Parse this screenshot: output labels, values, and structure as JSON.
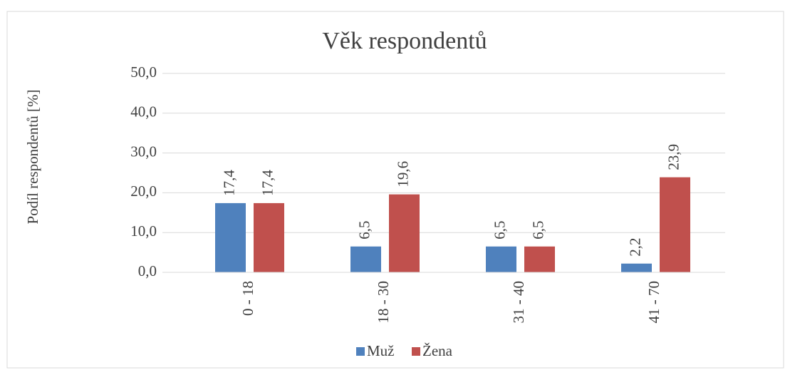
{
  "chart_data": {
    "type": "bar",
    "title": "Věk respondentů",
    "y_label": "Podíl respondentů [%]",
    "categories": [
      "0 - 18",
      "18 - 30",
      "31 - 40",
      "41 - 70"
    ],
    "series": [
      {
        "name": "Muž",
        "color": "#4f81bd",
        "values": [
          17.4,
          6.5,
          6.5,
          2.2
        ],
        "value_labels": [
          "17,4",
          "6,5",
          "6,5",
          "2,2"
        ]
      },
      {
        "name": "Žena",
        "color": "#c0504d",
        "values": [
          17.4,
          19.6,
          6.5,
          23.9
        ],
        "value_labels": [
          "17,4",
          "19,6",
          "6,5",
          "23,9"
        ]
      }
    ],
    "ylim": [
      0,
      50
    ],
    "yticks": [
      {
        "value": 0,
        "label": "0,0"
      },
      {
        "value": 10,
        "label": "10,0"
      },
      {
        "value": 20,
        "label": "20,0"
      },
      {
        "value": 30,
        "label": "30,0"
      },
      {
        "value": 40,
        "label": "40,0"
      },
      {
        "value": 50,
        "label": "50,0"
      }
    ],
    "grid": true,
    "legend": "bottom"
  }
}
